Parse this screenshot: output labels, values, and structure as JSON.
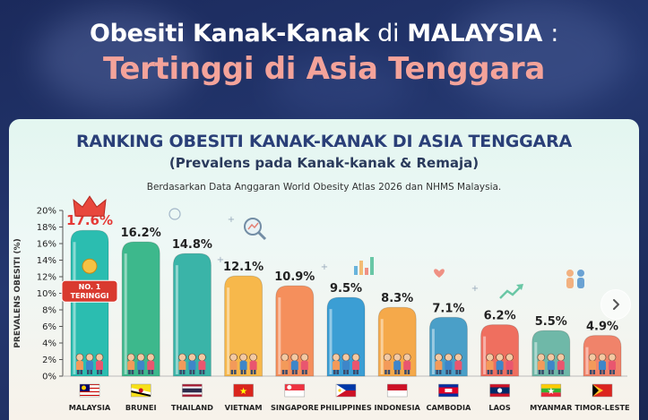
{
  "header": {
    "title_part1": "Obesiti Kanak-Kanak",
    "title_part2": "di",
    "title_part3": "MALAYSIA",
    "title_part4": ":",
    "title_line2": "Tertinggi di Asia Tenggara"
  },
  "card": {
    "title": "RANKING OBESITI KANAK-KANAK DI ASIA TENGGARA",
    "subtitle": "(Prevalens pada Kanak-kanak & Remaja)",
    "source": "Berdasarkan Data Anggaran World Obesity Atlas 2026 dan NHMS Malaysia."
  },
  "badge": {
    "line1": "NO. 1",
    "line2": "TERINGGI"
  },
  "chart_data": {
    "type": "bar",
    "title": "RANKING OBESITI KANAK-KANAK DI ASIA TENGGARA",
    "subtitle": "(Prevalens pada Kanak-kanak & Remaja)",
    "ylabel": "PREVALENS OBESITI (%)",
    "xlabel": "",
    "ylim": [
      0,
      20
    ],
    "yticks": [
      "0%",
      "2%",
      "4%",
      "6%",
      "8%",
      "10%",
      "12%",
      "14%",
      "16%",
      "18%",
      "20%"
    ],
    "grid": false,
    "categories": [
      "MALAYSIA",
      "BRUNEI",
      "THAILAND",
      "VIETNAM",
      "SINGAPORE",
      "PHILIPPINES",
      "INDONESIA",
      "CAMBODIA",
      "LAOS",
      "MYANMAR",
      "TIMOR-LESTE"
    ],
    "values": [
      17.6,
      16.2,
      14.8,
      12.1,
      10.9,
      9.5,
      8.3,
      7.1,
      6.2,
      5.5,
      4.9
    ],
    "value_labels": [
      "17.6%",
      "16.2%",
      "14.8%",
      "12.1%",
      "10.9%",
      "9.5%",
      "8.3%",
      "7.1%",
      "6.2%",
      "5.5%",
      "4.9%"
    ],
    "colors": [
      "#2bbdb0",
      "#3db88c",
      "#3ab4a8",
      "#f7b84b",
      "#f58f5c",
      "#3b9ed4",
      "#f5a94a",
      "#4a9fc8",
      "#ef6f5f",
      "#6fb8a8",
      "#f0836a"
    ],
    "highlight_color": "#e53935"
  }
}
